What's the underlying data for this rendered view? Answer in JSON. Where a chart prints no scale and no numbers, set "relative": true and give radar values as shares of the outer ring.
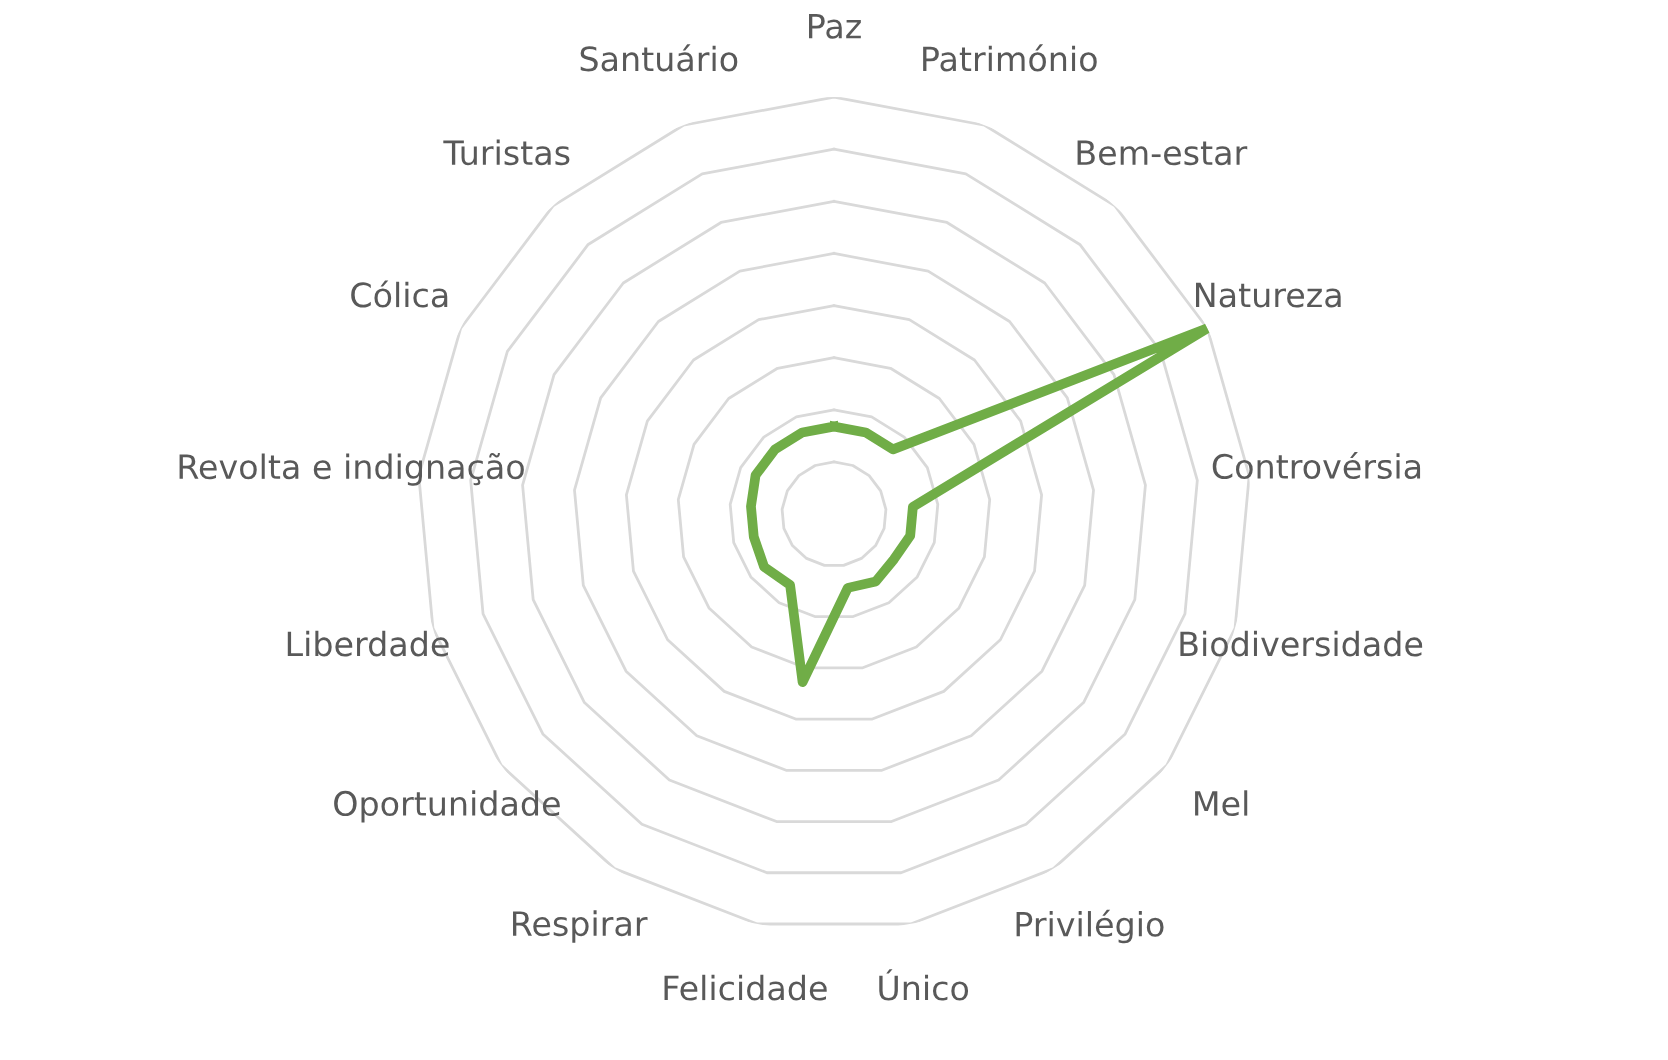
{
  "chart_data": {
    "type": "radar",
    "relative": true,
    "grid": true,
    "categories": [
      "Paz",
      "Património",
      "Bem-estar",
      "Natureza",
      "Controvérsia",
      "Biodiversidade",
      "Mel",
      "Privilégio",
      "Único",
      "Felicidade",
      "Respirar",
      "Oportunidade",
      "Liberdade",
      "Revolta e indignação",
      "Cólica",
      "Turistas",
      "Santuário"
    ],
    "series": [
      {
        "color": "#70ad47",
        "values": [
          0.21,
          0.21,
          0.21,
          1.0,
          0.19,
          0.19,
          0.18,
          0.19,
          0.18,
          0.41,
          0.2,
          0.21,
          0.2,
          0.2,
          0.21,
          0.21,
          0.21
        ]
      }
    ]
  }
}
